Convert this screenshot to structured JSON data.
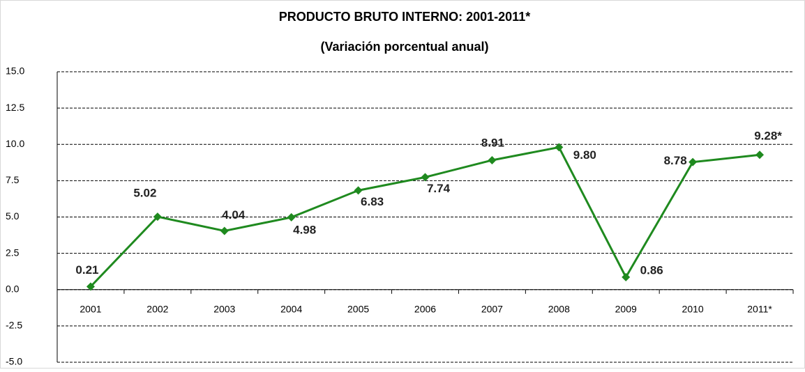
{
  "chart_data": {
    "type": "line",
    "title": "PRODUCTO BRUTO INTERNO: 2001-2011*",
    "subtitle": "(Variación porcentual anual)",
    "categories": [
      "2001",
      "2002",
      "2003",
      "2004",
      "2005",
      "2006",
      "2007",
      "2008",
      "2009",
      "2010",
      "2011*"
    ],
    "series": [
      {
        "color": "#1f8a1f",
        "values": [
          0.21,
          5.02,
          4.04,
          4.98,
          6.83,
          7.74,
          8.91,
          9.8,
          0.86,
          8.78,
          9.28
        ],
        "value_labels": [
          "0.21",
          "5.02",
          "4.04",
          "4.98",
          "6.83",
          "7.74",
          "8.91",
          "9.80",
          "0.86",
          "8.78",
          "9.28*"
        ]
      }
    ],
    "ylim": [
      -5,
      15
    ],
    "yticks": [
      {
        "value": -5,
        "label": "-5.0"
      },
      {
        "value": -2.5,
        "label": "-2.5"
      },
      {
        "value": 0,
        "label": "0.0"
      },
      {
        "value": 2.5,
        "label": "2.5"
      },
      {
        "value": 5,
        "label": "5.0"
      },
      {
        "value": 7.5,
        "label": "7.5"
      },
      {
        "value": 10,
        "label": "10.0"
      },
      {
        "value": 12.5,
        "label": "12.5"
      },
      {
        "value": 15,
        "label": "15.0"
      }
    ],
    "grid": true
  }
}
